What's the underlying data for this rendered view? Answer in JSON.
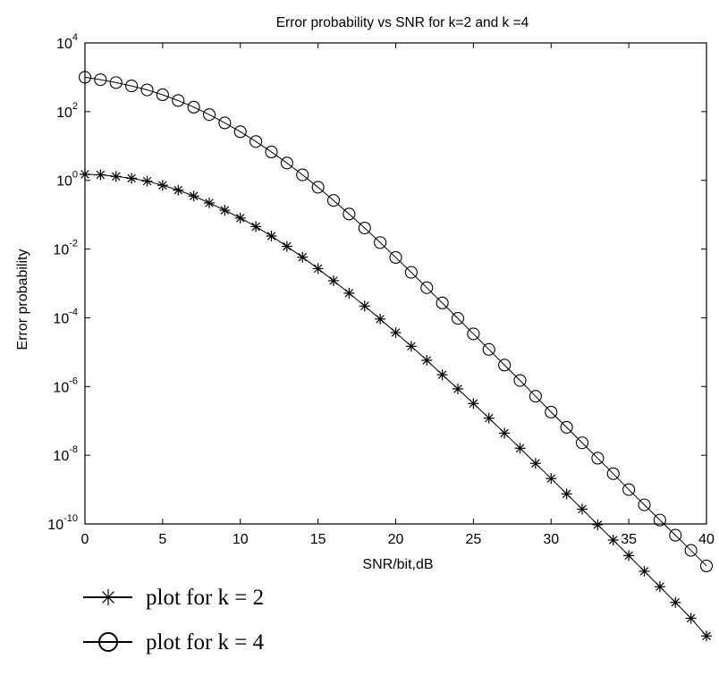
{
  "chart_data": {
    "type": "line",
    "title": "Error probability vs SNR for k=2 and k =4",
    "xlabel": "SNR/bit,dB",
    "ylabel": "Error probability",
    "xlim": [
      0,
      40
    ],
    "ylim_exponent": [
      -10,
      4
    ],
    "y_scale": "log",
    "x_ticks": [
      "0",
      "5",
      "10",
      "15",
      "20",
      "25",
      "30",
      "35",
      "40"
    ],
    "y_ticks": [
      {
        "base": "10",
        "exp": "4"
      },
      {
        "base": "10",
        "exp": "2"
      },
      {
        "base": "10",
        "exp": "0"
      },
      {
        "base": "10",
        "exp": "-2"
      },
      {
        "base": "10",
        "exp": "-4"
      },
      {
        "base": "10",
        "exp": "-6"
      },
      {
        "base": "10",
        "exp": "-8"
      },
      {
        "base": "10",
        "exp": "-10"
      }
    ],
    "x": [
      0,
      1,
      2,
      3,
      4,
      5,
      6,
      7,
      8,
      9,
      10,
      11,
      12,
      13,
      14,
      15,
      16,
      17,
      18,
      19,
      20,
      21,
      22,
      23,
      24,
      25,
      26,
      27,
      28,
      29,
      30,
      31,
      32,
      33,
      34,
      35,
      36,
      37,
      38,
      39,
      40
    ],
    "series": [
      {
        "name": "plot for k = 2",
        "marker": "star",
        "values": [
          1.5,
          1.45,
          1.3,
          1.15,
          0.95,
          0.72,
          0.52,
          0.35,
          0.22,
          0.135,
          0.08,
          0.045,
          0.024,
          0.012,
          0.0058,
          0.0027,
          0.0012,
          0.00052,
          0.00022,
          9.2e-05,
          3.7e-05,
          1.48e-05,
          5.8e-06,
          2.2e-06,
          8.5e-07,
          3.2e-07,
          1.2e-07,
          4.4e-08,
          1.6e-08,
          5.8e-09,
          2.1e-09,
          7.5e-10,
          2.7e-10,
          9.5e-11,
          3.4e-11,
          1.2e-11,
          4.2e-12,
          1.5e-12,
          5.2e-13,
          1.8e-13,
          5.5e-14
        ]
      },
      {
        "name": "plot for k = 4",
        "marker": "circle",
        "values": [
          1000,
          850,
          700,
          560,
          430,
          310,
          210,
          135,
          82,
          47,
          26,
          13.5,
          6.7,
          3.2,
          1.45,
          0.63,
          0.26,
          0.105,
          0.041,
          0.0155,
          0.0057,
          0.0021,
          0.00075,
          0.00027,
          9.6e-05,
          3.4e-05,
          1.2e-05,
          4.2e-06,
          1.5e-06,
          5.2e-07,
          1.8e-07,
          6.5e-08,
          2.3e-08,
          8.2e-09,
          2.9e-09,
          1e-09,
          3.6e-10,
          1.3e-10,
          4.7e-11,
          1.7e-11,
          6e-12
        ]
      }
    ],
    "legend_position": "below"
  }
}
